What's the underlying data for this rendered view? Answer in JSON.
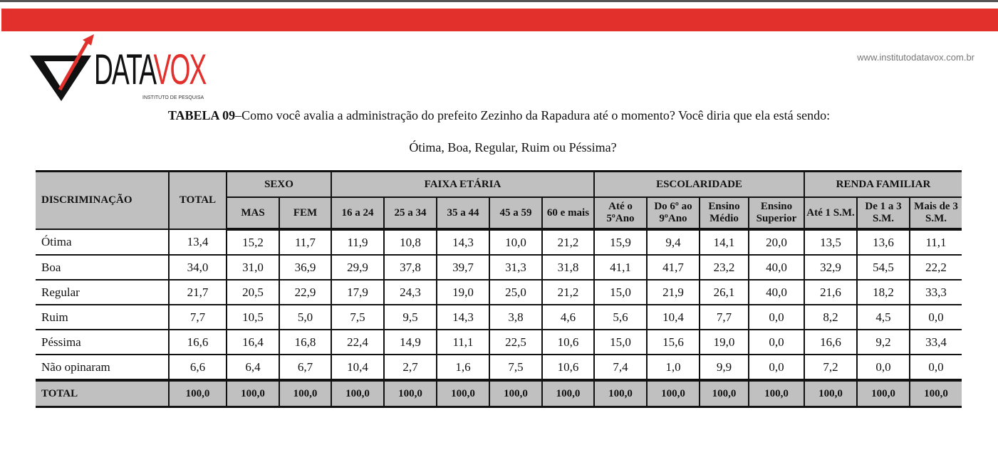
{
  "logo": {
    "brand_dark": "DATA",
    "brand_red": "VOX",
    "tagline": "INSTITUTO DE PESQUISA"
  },
  "website": "www.institutodatavox.com.br",
  "colors": {
    "red_bar": "#e2302c",
    "header_bg": "#c0c0c0"
  },
  "title": {
    "label": "TABELA 09",
    "question": "–Como você avalia a administração do prefeito Zezinho da Rapadura até o momento? Você diria que ela está sendo:",
    "options": "Ótima, Boa, Regular, Ruim ou Péssima?"
  },
  "table": {
    "discrim_header": "DISCRIMINAÇÃO",
    "total_header": "TOTAL",
    "groups": [
      {
        "label": "SEXO",
        "span": 2
      },
      {
        "label": "FAIXA ETÁRIA",
        "span": 5
      },
      {
        "label": "ESCOLARIDADE",
        "span": 4
      },
      {
        "label": "RENDA FAMILIAR",
        "span": 3
      }
    ],
    "subheaders": [
      "MAS",
      "FEM",
      "16 a 24",
      "25 a 34",
      "35 a 44",
      "45 a 59",
      "60 e mais",
      "Até o 5ºAno",
      "Do 6º ao 9ºAno",
      "Ensino Médio",
      "Ensino Superior",
      "Até 1 S.M.",
      "De 1 a 3 S.M.",
      "Mais de 3 S.M."
    ],
    "rows": [
      {
        "label": "Ótima",
        "values": [
          "13,4",
          "15,2",
          "11,7",
          "11,9",
          "10,8",
          "14,3",
          "10,0",
          "21,2",
          "15,9",
          "9,4",
          "14,1",
          "20,0",
          "13,5",
          "13,6",
          "11,1"
        ]
      },
      {
        "label": "Boa",
        "values": [
          "34,0",
          "31,0",
          "36,9",
          "29,9",
          "37,8",
          "39,7",
          "31,3",
          "31,8",
          "41,1",
          "41,7",
          "23,2",
          "40,0",
          "32,9",
          "54,5",
          "22,2"
        ]
      },
      {
        "label": "Regular",
        "values": [
          "21,7",
          "20,5",
          "22,9",
          "17,9",
          "24,3",
          "19,0",
          "25,0",
          "21,2",
          "15,0",
          "21,9",
          "26,1",
          "40,0",
          "21,6",
          "18,2",
          "33,3"
        ]
      },
      {
        "label": "Ruim",
        "values": [
          "7,7",
          "10,5",
          "5,0",
          "7,5",
          "9,5",
          "14,3",
          "3,8",
          "4,6",
          "5,6",
          "10,4",
          "7,7",
          "0,0",
          "8,2",
          "4,5",
          "0,0"
        ]
      },
      {
        "label": "Péssima",
        "values": [
          "16,6",
          "16,4",
          "16,8",
          "22,4",
          "14,9",
          "11,1",
          "22,5",
          "10,6",
          "15,0",
          "15,6",
          "19,0",
          "0,0",
          "16,6",
          "9,2",
          "33,4"
        ]
      },
      {
        "label": "Não opinaram",
        "values": [
          "6,6",
          "6,4",
          "6,7",
          "10,4",
          "2,7",
          "1,6",
          "7,5",
          "10,6",
          "7,4",
          "1,0",
          "9,9",
          "0,0",
          "7,2",
          "0,0",
          "0,0"
        ]
      }
    ],
    "total_row": {
      "label": "TOTAL",
      "values": [
        "100,0",
        "100,0",
        "100,0",
        "100,0",
        "100,0",
        "100,0",
        "100,0",
        "100,0",
        "100,0",
        "100,0",
        "100,0",
        "100,0",
        "100,0",
        "100,0",
        "100,0"
      ]
    }
  }
}
